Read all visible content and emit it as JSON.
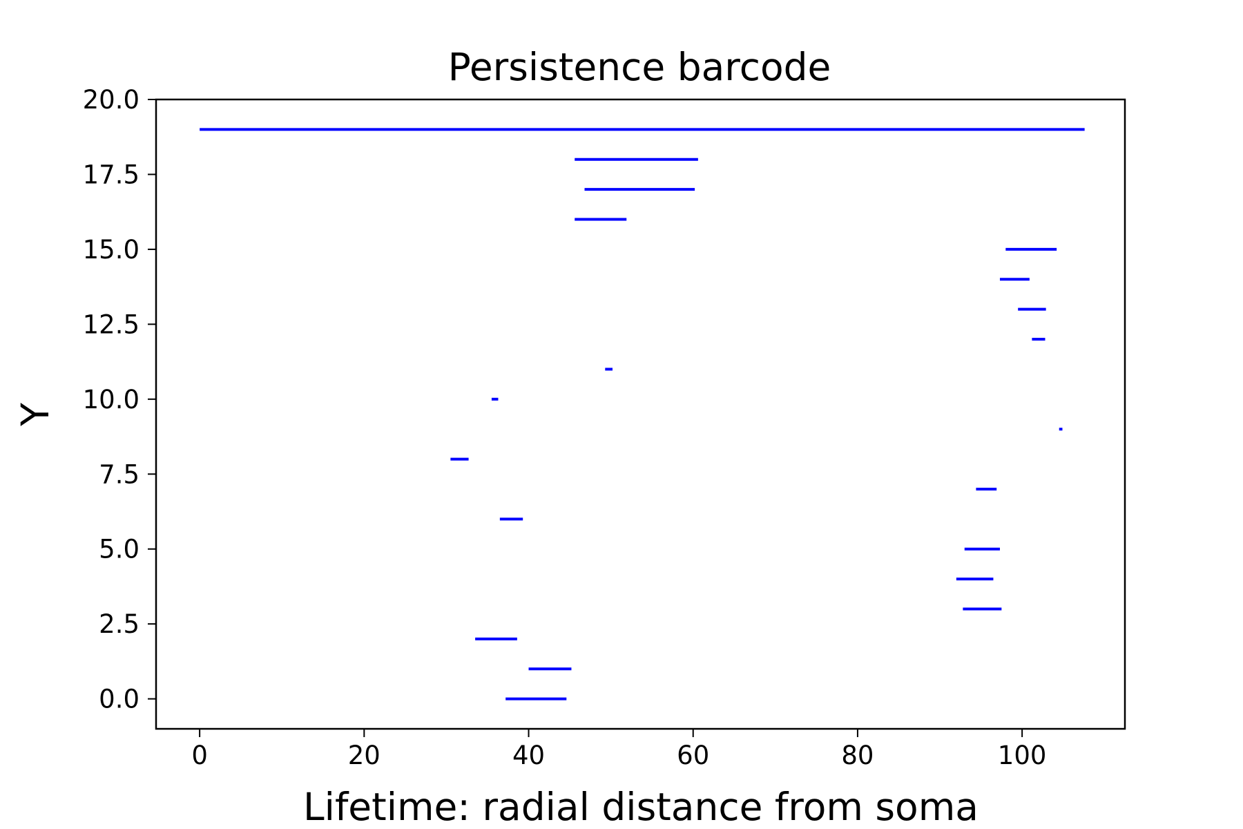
{
  "chart_data": {
    "type": "barcode",
    "title": "Persistence barcode",
    "xlabel": "Lifetime: radial distance from soma",
    "ylabel": "Y",
    "xlim": [
      -5.3,
      112.5
    ],
    "ylim": [
      -1.0,
      20.0
    ],
    "xticks": [
      0,
      20,
      40,
      60,
      80,
      100
    ],
    "xtick_labels": [
      "0",
      "20",
      "40",
      "60",
      "80",
      "100"
    ],
    "yticks": [
      0.0,
      2.5,
      5.0,
      7.5,
      10.0,
      12.5,
      15.0,
      17.5,
      20.0
    ],
    "ytick_labels": [
      "0.0",
      "2.5",
      "5.0",
      "7.5",
      "10.0",
      "12.5",
      "15.0",
      "17.5",
      "20.0"
    ],
    "grid": false,
    "legend": "none",
    "color": "#0000ff",
    "bars": [
      {
        "y": 0,
        "start": 37.2,
        "end": 44.6
      },
      {
        "y": 1,
        "start": 40.0,
        "end": 45.2
      },
      {
        "y": 2,
        "start": 33.5,
        "end": 38.6
      },
      {
        "y": 3,
        "start": 92.8,
        "end": 97.5
      },
      {
        "y": 4,
        "start": 92.0,
        "end": 96.5
      },
      {
        "y": 5,
        "start": 93.0,
        "end": 97.3
      },
      {
        "y": 6,
        "start": 36.5,
        "end": 39.3
      },
      {
        "y": 7,
        "start": 94.4,
        "end": 96.9
      },
      {
        "y": 8,
        "start": 30.5,
        "end": 32.7
      },
      {
        "y": 9,
        "start": 104.5,
        "end": 104.9
      },
      {
        "y": 10,
        "start": 35.5,
        "end": 36.3
      },
      {
        "y": 11,
        "start": 49.3,
        "end": 50.2
      },
      {
        "y": 12,
        "start": 101.2,
        "end": 102.8
      },
      {
        "y": 13,
        "start": 99.5,
        "end": 102.9
      },
      {
        "y": 14,
        "start": 97.3,
        "end": 100.9
      },
      {
        "y": 15,
        "start": 98.0,
        "end": 104.2
      },
      {
        "y": 16,
        "start": 45.6,
        "end": 51.9
      },
      {
        "y": 17,
        "start": 46.8,
        "end": 60.2
      },
      {
        "y": 18,
        "start": 45.6,
        "end": 60.6
      },
      {
        "y": 19,
        "start": 0.0,
        "end": 107.6
      }
    ]
  }
}
